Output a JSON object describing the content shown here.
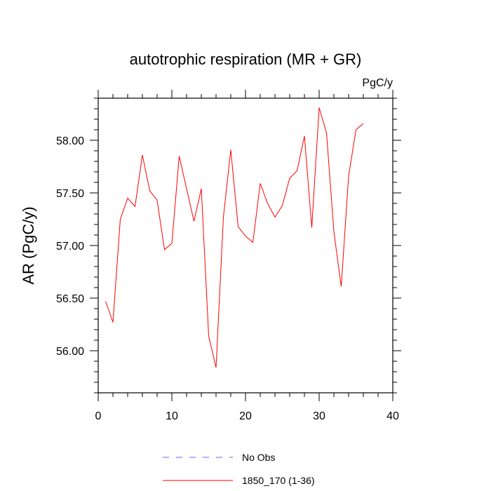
{
  "chart_data": {
    "type": "line",
    "title": "autotrophic respiration (MR + GR)",
    "units": "PgC/y",
    "ylabel": "AR  (PgC/y)",
    "xlabel": "",
    "xlim": [
      0,
      40
    ],
    "ylim": [
      55.6,
      58.4
    ],
    "xticks": [
      "0",
      "10",
      "20",
      "30",
      "40"
    ],
    "yticks": [
      "56.00",
      "56.50",
      "57.00",
      "57.50",
      "58.00"
    ],
    "grid": false,
    "legend_position": "bottom",
    "series": [
      {
        "name": "1850_170 (1-36)",
        "color": "#ff0000",
        "style": "solid",
        "x": [
          1,
          2,
          3,
          4,
          5,
          6,
          7,
          8,
          9,
          10,
          11,
          12,
          13,
          14,
          15,
          16,
          17,
          18,
          19,
          20,
          21,
          22,
          23,
          24,
          25,
          26,
          27,
          28,
          29,
          30,
          31,
          32,
          33,
          34,
          35,
          36
        ],
        "values": [
          56.47,
          56.27,
          57.25,
          57.45,
          57.37,
          57.86,
          57.52,
          57.43,
          56.96,
          57.02,
          57.85,
          57.54,
          57.23,
          57.54,
          56.14,
          55.84,
          57.27,
          57.91,
          57.18,
          57.09,
          57.03,
          57.59,
          57.4,
          57.27,
          57.38,
          57.64,
          57.71,
          58.04,
          57.17,
          58.31,
          58.07,
          57.13,
          56.61,
          57.66,
          58.1,
          58.16
        ]
      }
    ],
    "legend": [
      {
        "label": "No Obs",
        "color": "#6666ff",
        "style": "dashed"
      },
      {
        "label": "1850_170 (1-36)",
        "color": "#ff0000",
        "style": "solid"
      }
    ]
  }
}
